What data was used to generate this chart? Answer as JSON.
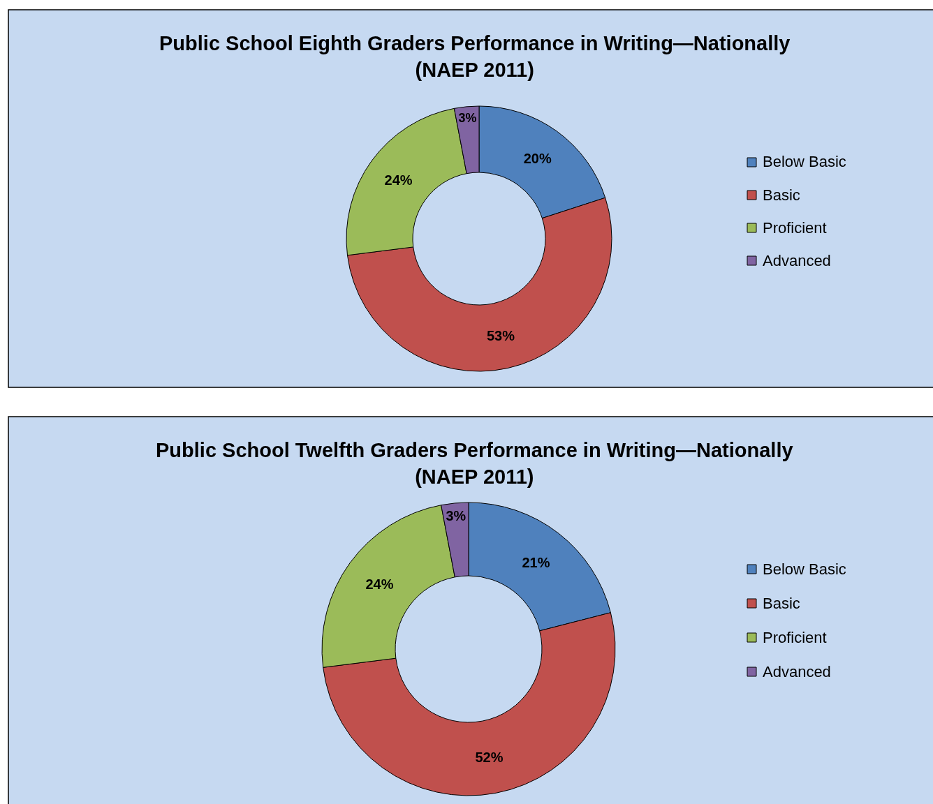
{
  "chart_data": [
    {
      "type": "donut",
      "title": "Public School Eighth Graders Performance in Writing—Nationally\n(NAEP 2011)",
      "categories": [
        "Below Basic",
        "Basic",
        "Proficient",
        "Advanced"
      ],
      "values": [
        20,
        53,
        24,
        3
      ],
      "colors": [
        "#4f81bd",
        "#c0504d",
        "#9bbb59",
        "#8064a2"
      ],
      "value_labels": [
        "20%",
        "53%",
        "24%",
        "3%"
      ],
      "legend": "right"
    },
    {
      "type": "donut",
      "title": "Public School Twelfth Graders Performance in Writing—Nationally\n(NAEP 2011)",
      "categories": [
        "Below Basic",
        "Basic",
        "Proficient",
        "Advanced"
      ],
      "values": [
        21,
        52,
        24,
        3
      ],
      "colors": [
        "#4f81bd",
        "#c0504d",
        "#9bbb59",
        "#8064a2"
      ],
      "value_labels": [
        "21%",
        "52%",
        "24%",
        "3%"
      ],
      "legend": "right"
    }
  ]
}
